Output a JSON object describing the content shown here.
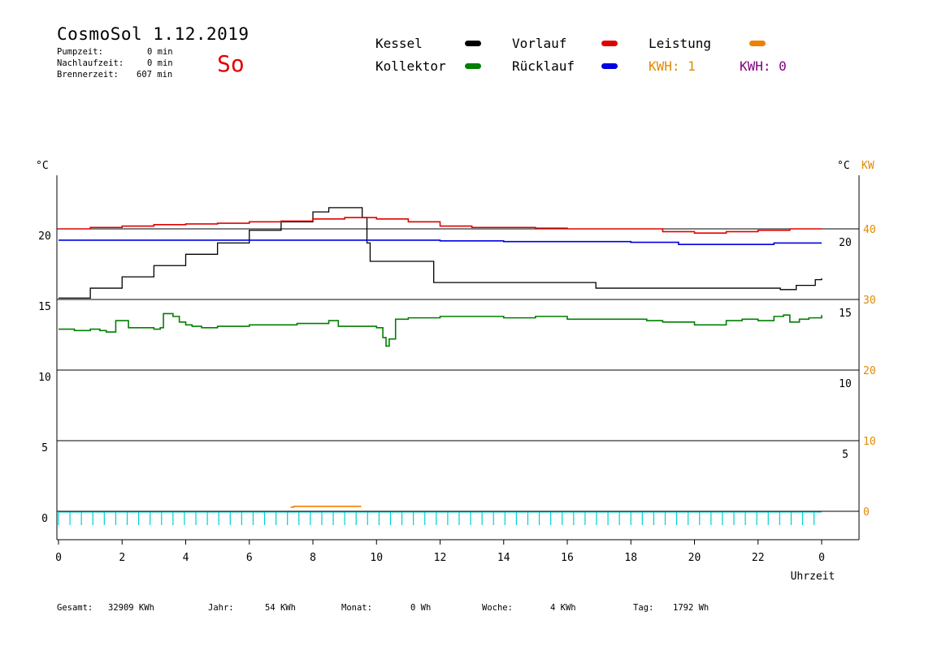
{
  "header": {
    "title": "CosmoSol 1.12.2019",
    "pump_label": "Pumpzeit:",
    "pump_value": "0 min",
    "nachlauf_label": "Nachlaufzeit:",
    "nachlauf_value": "0 min",
    "brenner_label": "Brennerzeit:",
    "brenner_value": "607 min",
    "day": "So"
  },
  "legend": {
    "kessel": "Kessel",
    "kollektor": "Kollektor",
    "vorlauf": "Vorlauf",
    "ruecklauf": "Rücklauf",
    "leistung": "Leistung",
    "kwh1": "KWH: 1",
    "kwh2": "KWH: 0"
  },
  "footer": {
    "gesamt_label": "Gesamt:",
    "gesamt_value": "32909 KWh",
    "jahr_label": "Jahr:",
    "jahr_value": "54 KWh",
    "monat_label": "Monat:",
    "monat_value": "0 Wh",
    "woche_label": "Woche:",
    "woche_value": "4 KWh",
    "tag_label": "Tag:",
    "tag_value": "1792 Wh"
  },
  "colors": {
    "kessel": "#000000",
    "kollektor": "#007f00",
    "vorlauf": "#e00000",
    "ruecklauf": "#0000e0",
    "leistung": "#f08000",
    "kwh1": "#e08a00",
    "kwh2": "#800080",
    "cyan": "#00d0d0"
  },
  "chart_data": {
    "type": "line",
    "xlabel": "Uhrzeit",
    "x_ticks": [
      "0",
      "2",
      "4",
      "6",
      "8",
      "10",
      "12",
      "14",
      "16",
      "18",
      "20",
      "22",
      "0"
    ],
    "xlim": [
      0,
      24
    ],
    "y_left_label": "°C",
    "y_left_ticks": [
      "0",
      "5",
      "10",
      "15",
      "20"
    ],
    "y_left_lim": [
      -1.5,
      25
    ],
    "y_right_label": "°C",
    "y_right_ticks": [
      "5",
      "10",
      "15",
      "20"
    ],
    "y_right2_label": "KW",
    "y_right2_ticks": [
      "0",
      "10",
      "20",
      "30",
      "40"
    ],
    "grid": true,
    "series": [
      {
        "name": "Kessel",
        "color": "#000000",
        "points": [
          [
            0,
            15.1
          ],
          [
            1,
            15.8
          ],
          [
            2,
            16.6
          ],
          [
            3,
            17.4
          ],
          [
            4,
            18.2
          ],
          [
            5,
            19.0
          ],
          [
            6,
            19.9
          ],
          [
            7,
            20.5
          ],
          [
            8,
            21.2
          ],
          [
            8.5,
            21.5
          ],
          [
            9.5,
            21.5
          ],
          [
            9.55,
            20.8
          ],
          [
            9.7,
            19.0
          ],
          [
            9.8,
            17.7
          ],
          [
            11.5,
            17.7
          ],
          [
            11.8,
            16.2
          ],
          [
            16.7,
            16.2
          ],
          [
            16.9,
            15.8
          ],
          [
            22.6,
            15.8
          ],
          [
            22.7,
            15.7
          ],
          [
            23.2,
            16.0
          ],
          [
            23.8,
            16.4
          ],
          [
            24,
            16.5
          ]
        ]
      },
      {
        "name": "Vorlauf",
        "color": "#e00000",
        "points": [
          [
            0,
            20.0
          ],
          [
            1,
            20.1
          ],
          [
            2,
            20.2
          ],
          [
            3,
            20.3
          ],
          [
            4,
            20.35
          ],
          [
            5,
            20.4
          ],
          [
            6,
            20.5
          ],
          [
            7,
            20.55
          ],
          [
            8,
            20.7
          ],
          [
            9,
            20.8
          ],
          [
            9.5,
            20.8
          ],
          [
            10,
            20.7
          ],
          [
            11,
            20.5
          ],
          [
            12,
            20.2
          ],
          [
            13,
            20.1
          ],
          [
            14,
            20.1
          ],
          [
            15,
            20.05
          ],
          [
            16,
            20.0
          ],
          [
            17,
            20.0
          ],
          [
            18,
            20.0
          ],
          [
            19,
            19.8
          ],
          [
            20,
            19.7
          ],
          [
            21,
            19.8
          ],
          [
            22,
            19.9
          ],
          [
            23,
            20.0
          ],
          [
            24,
            20.0
          ]
        ]
      },
      {
        "name": "Rücklauf",
        "color": "#0000e0",
        "points": [
          [
            0,
            19.2
          ],
          [
            2,
            19.2
          ],
          [
            4,
            19.2
          ],
          [
            6,
            19.2
          ],
          [
            8,
            19.2
          ],
          [
            10,
            19.2
          ],
          [
            12,
            19.15
          ],
          [
            14,
            19.1
          ],
          [
            16,
            19.1
          ],
          [
            18,
            19.05
          ],
          [
            19.5,
            18.9
          ],
          [
            21,
            18.9
          ],
          [
            22.5,
            19.0
          ],
          [
            24,
            19.0
          ]
        ]
      },
      {
        "name": "Kollektor",
        "color": "#007f00",
        "points": [
          [
            0,
            12.9
          ],
          [
            0.5,
            12.8
          ],
          [
            1,
            12.9
          ],
          [
            1.3,
            12.8
          ],
          [
            1.5,
            12.7
          ],
          [
            1.8,
            13.5
          ],
          [
            2.2,
            13.0
          ],
          [
            2.7,
            13.0
          ],
          [
            3,
            12.9
          ],
          [
            3.2,
            13.0
          ],
          [
            3.3,
            14.0
          ],
          [
            3.6,
            13.8
          ],
          [
            3.8,
            13.4
          ],
          [
            4,
            13.2
          ],
          [
            4.2,
            13.1
          ],
          [
            4.5,
            13.0
          ],
          [
            5,
            13.1
          ],
          [
            5.5,
            13.1
          ],
          [
            6,
            13.2
          ],
          [
            7,
            13.2
          ],
          [
            7.5,
            13.3
          ],
          [
            8,
            13.3
          ],
          [
            8.5,
            13.5
          ],
          [
            8.8,
            13.1
          ],
          [
            9.5,
            13.1
          ],
          [
            10,
            13.0
          ],
          [
            10.2,
            12.3
          ],
          [
            10.3,
            11.7
          ],
          [
            10.4,
            12.2
          ],
          [
            10.6,
            13.6
          ],
          [
            11,
            13.7
          ],
          [
            12,
            13.8
          ],
          [
            13,
            13.8
          ],
          [
            13.5,
            13.8
          ],
          [
            14,
            13.7
          ],
          [
            15,
            13.8
          ],
          [
            16,
            13.6
          ],
          [
            17,
            13.6
          ],
          [
            18,
            13.6
          ],
          [
            18.5,
            13.5
          ],
          [
            19,
            13.4
          ],
          [
            20,
            13.2
          ],
          [
            21,
            13.5
          ],
          [
            21.5,
            13.6
          ],
          [
            22,
            13.5
          ],
          [
            22.5,
            13.8
          ],
          [
            22.8,
            13.9
          ],
          [
            23,
            13.4
          ],
          [
            23.3,
            13.6
          ],
          [
            23.6,
            13.7
          ],
          [
            24,
            13.9
          ]
        ]
      },
      {
        "name": "Leistung",
        "color": "#f08000",
        "points": [
          [
            7.3,
            0.3
          ],
          [
            7.4,
            0.3
          ],
          [
            7.4,
            0.35
          ],
          [
            9.5,
            0.35
          ],
          [
            9.5,
            0.3
          ]
        ]
      }
    ]
  }
}
